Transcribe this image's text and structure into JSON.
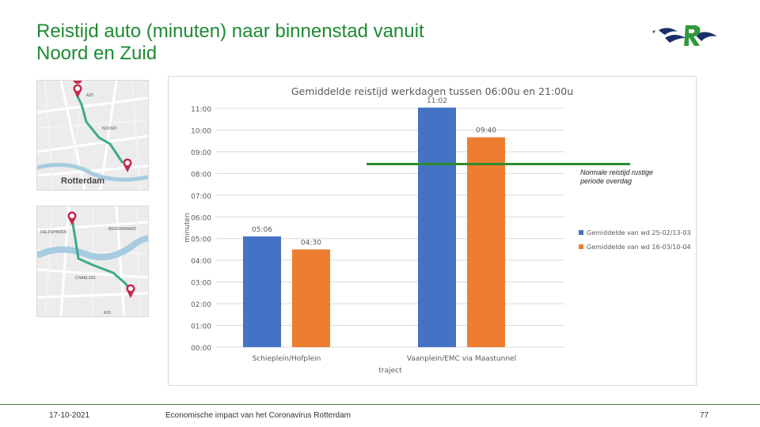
{
  "slide": {
    "title_line1": "Reistijd auto (minuten) naar binnenstad vanuit",
    "title_line2": "Noord en Zuid",
    "annotation": "Normale reistijd rustige periode overdag",
    "footer_date": "17-10-2021",
    "footer_center": "Economische impact van het Coronavirus Rotterdam",
    "page_number": "77",
    "accent_color": "#1e8a33"
  },
  "maps": {
    "top": {
      "labels": [
        "A20",
        "NOORD"
      ],
      "city": "Rotterdam",
      "markers": [
        "1",
        "2"
      ]
    },
    "bottom": {
      "labels": [
        "DELFSHAVEN",
        "CHARLOIS",
        "BEVERWAARD",
        "A15"
      ],
      "markers": [
        "2",
        "1"
      ]
    },
    "route_color": "#3daa8c",
    "marker_color": "#c4294f"
  },
  "chart_data": {
    "type": "bar",
    "title": "Gemiddelde reistijd werkdagen tussen 06:00u en 21:00u",
    "xlabel": "traject",
    "ylabel": "minuten",
    "categories": [
      "Schiepleín/Hofplein",
      "Vaanplein/EMC via Maastunnel"
    ],
    "series": [
      {
        "name": "Gemiddelde van wd 25-02/13-03",
        "color": "#4472c4",
        "values": [
          5.1,
          11.033
        ],
        "labels": [
          "05:06",
          "11:02"
        ]
      },
      {
        "name": "Gemiddelde van wd 16-03/10-04",
        "color": "#ed7d31",
        "values": [
          4.5,
          9.667
        ],
        "labels": [
          "04:30",
          "09:40"
        ]
      }
    ],
    "y_ticks": [
      "00:00",
      "01:00",
      "02:00",
      "03:00",
      "04:00",
      "05:00",
      "06:00",
      "07:00",
      "08:00",
      "09:00",
      "10:00",
      "11:00"
    ],
    "ylim": [
      0,
      11
    ],
    "grid": true,
    "legend_position": "right",
    "reference_line": {
      "value": 9.2,
      "color": "#2e8b2e"
    }
  }
}
